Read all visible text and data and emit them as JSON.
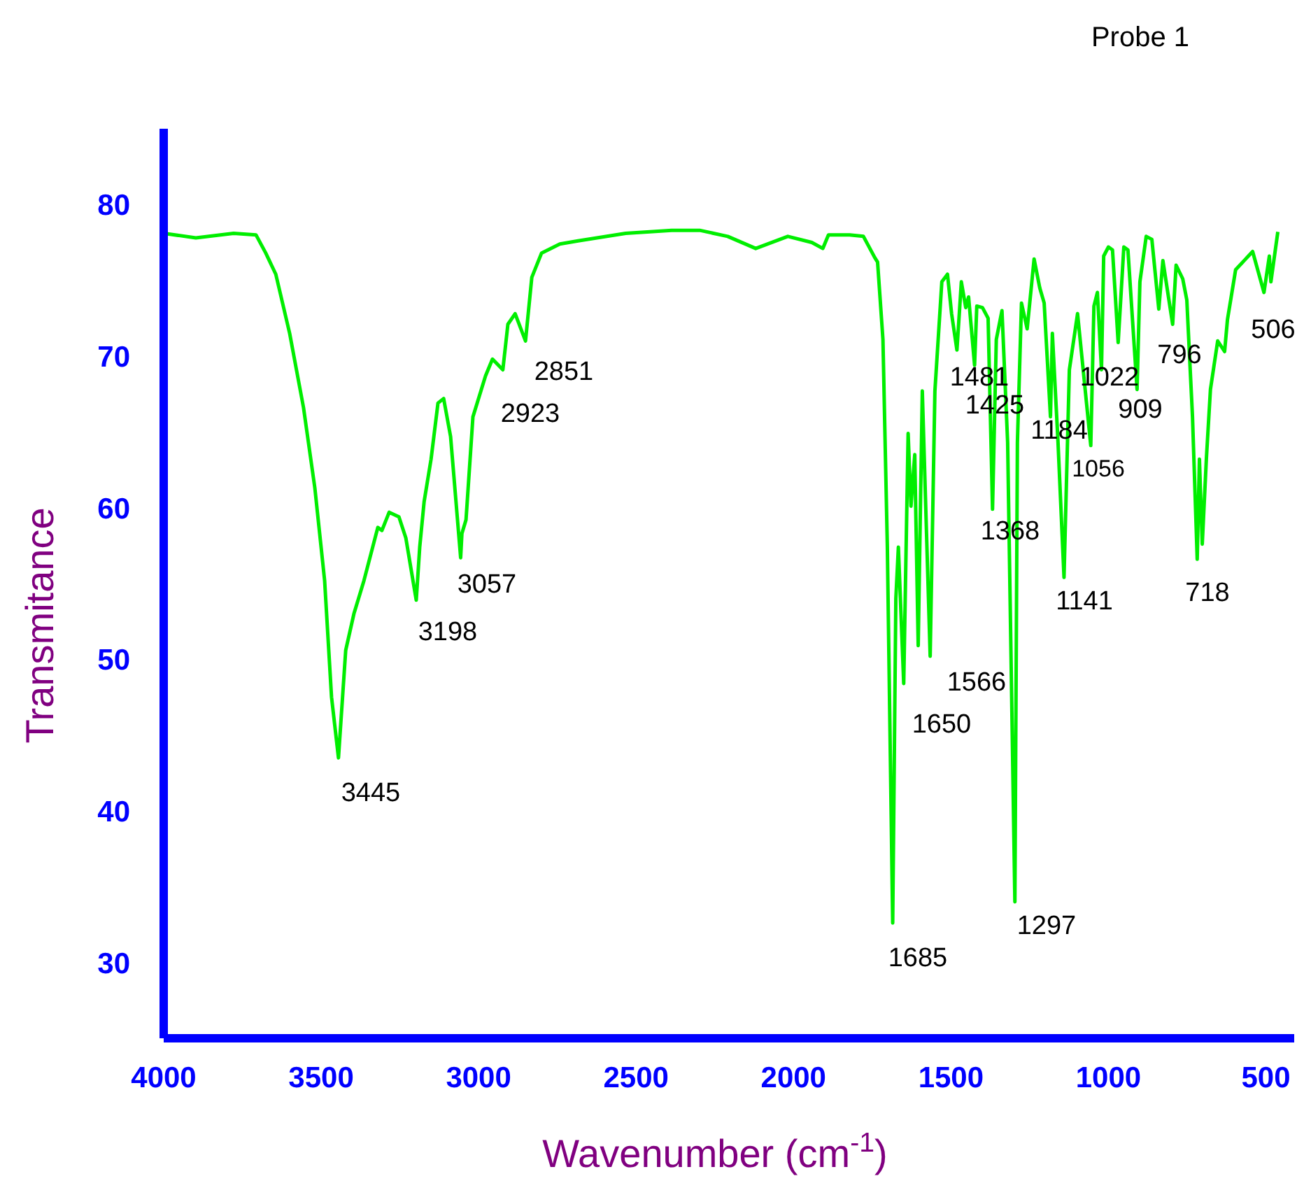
{
  "chart_data": {
    "type": "line",
    "title": "Probe 1",
    "xlabel": "Wavenumber (cm$^{-1}$)",
    "ylabel": "Transmitance",
    "xlim": [
      4000,
      410
    ],
    "xticks": [
      4000,
      3500,
      3000,
      2500,
      2000,
      1500,
      1000,
      500
    ],
    "ylim": [
      25,
      85
    ],
    "yticks": [
      30,
      40,
      50,
      60,
      70,
      80
    ],
    "marker": "none",
    "line_style": "solid",
    "series": [
      {
        "color": "#00ee00",
        "x": [
          4000,
          3898,
          3778,
          3707,
          3676,
          3644,
          3600,
          3556,
          3520,
          3489,
          3467,
          3445,
          3422,
          3396,
          3364,
          3320,
          3307,
          3284,
          3253,
          3231,
          3198,
          3187,
          3173,
          3151,
          3129,
          3111,
          3089,
          3057,
          3053,
          3040,
          3018,
          2978,
          2956,
          2923,
          2907,
          2884,
          2851,
          2831,
          2800,
          2742,
          2684,
          2533,
          2387,
          2298,
          2209,
          2120,
          2018,
          1942,
          1907,
          1889,
          1822,
          1778,
          1742,
          1733,
          1716,
          1702,
          1685,
          1675,
          1667,
          1650,
          1636,
          1627,
          1615,
          1604,
          1591,
          1566,
          1551,
          1529,
          1511,
          1498,
          1481,
          1467,
          1453,
          1444,
          1425,
          1418,
          1400,
          1382,
          1368,
          1356,
          1338,
          1320,
          1297,
          1289,
          1276,
          1258,
          1236,
          1218,
          1204,
          1184,
          1178,
          1160,
          1141,
          1124,
          1098,
          1056,
          1046,
          1035,
          1022,
          1015,
          1000,
          987,
          969,
          951,
          938,
          909,
          900,
          880,
          862,
          840,
          827,
          796,
          785,
          764,
          751,
          733,
          718,
          711,
          702,
          689,
          676,
          653,
          631,
          622,
          596,
          542,
          506,
          489,
          484,
          462
        ],
        "values": [
          78.1,
          77.8,
          78.1,
          78.0,
          76.8,
          75.4,
          71.5,
          66.6,
          61.3,
          55.2,
          47.5,
          43.5,
          50.6,
          53.0,
          55.2,
          58.7,
          58.5,
          59.7,
          59.4,
          58.0,
          53.9,
          57.4,
          60.4,
          63.2,
          66.9,
          67.2,
          64.7,
          56.7,
          58.3,
          59.2,
          66.0,
          68.7,
          69.8,
          69.1,
          72.1,
          72.8,
          71.0,
          75.2,
          76.8,
          77.4,
          77.6,
          78.1,
          78.3,
          78.3,
          77.9,
          77.1,
          77.9,
          77.5,
          77.1,
          78.0,
          78.0,
          77.9,
          76.5,
          76.2,
          71.1,
          57.4,
          32.6,
          54.0,
          57.4,
          48.4,
          64.9,
          60.1,
          63.5,
          50.9,
          67.7,
          50.2,
          67.7,
          74.9,
          75.4,
          72.8,
          70.4,
          74.9,
          73.2,
          73.9,
          69.4,
          73.3,
          73.2,
          72.5,
          59.9,
          71.1,
          73.0,
          64.3,
          34.0,
          64.3,
          73.5,
          71.8,
          76.4,
          74.5,
          73.5,
          66.0,
          71.5,
          64.3,
          55.4,
          69.1,
          72.8,
          64.1,
          73.3,
          74.2,
          69.1,
          76.6,
          77.2,
          77.0,
          70.9,
          77.2,
          77.0,
          67.8,
          74.9,
          77.9,
          77.7,
          73.1,
          76.3,
          72.1,
          76.0,
          75.1,
          73.7,
          66.0,
          56.6,
          63.2,
          57.6,
          63.2,
          67.8,
          71.0,
          70.3,
          72.4,
          75.7,
          76.9,
          74.2,
          76.6,
          74.9,
          78.2
        ]
      }
    ],
    "annotations": [
      "3445",
      "3198",
      "3057",
      "2923",
      "2851",
      "1685",
      "1650",
      "1566",
      "1481",
      "1425",
      "1368",
      "1297",
      "1184",
      "1141",
      "1056",
      "1022",
      "909",
      "796",
      "718",
      "506"
    ]
  }
}
